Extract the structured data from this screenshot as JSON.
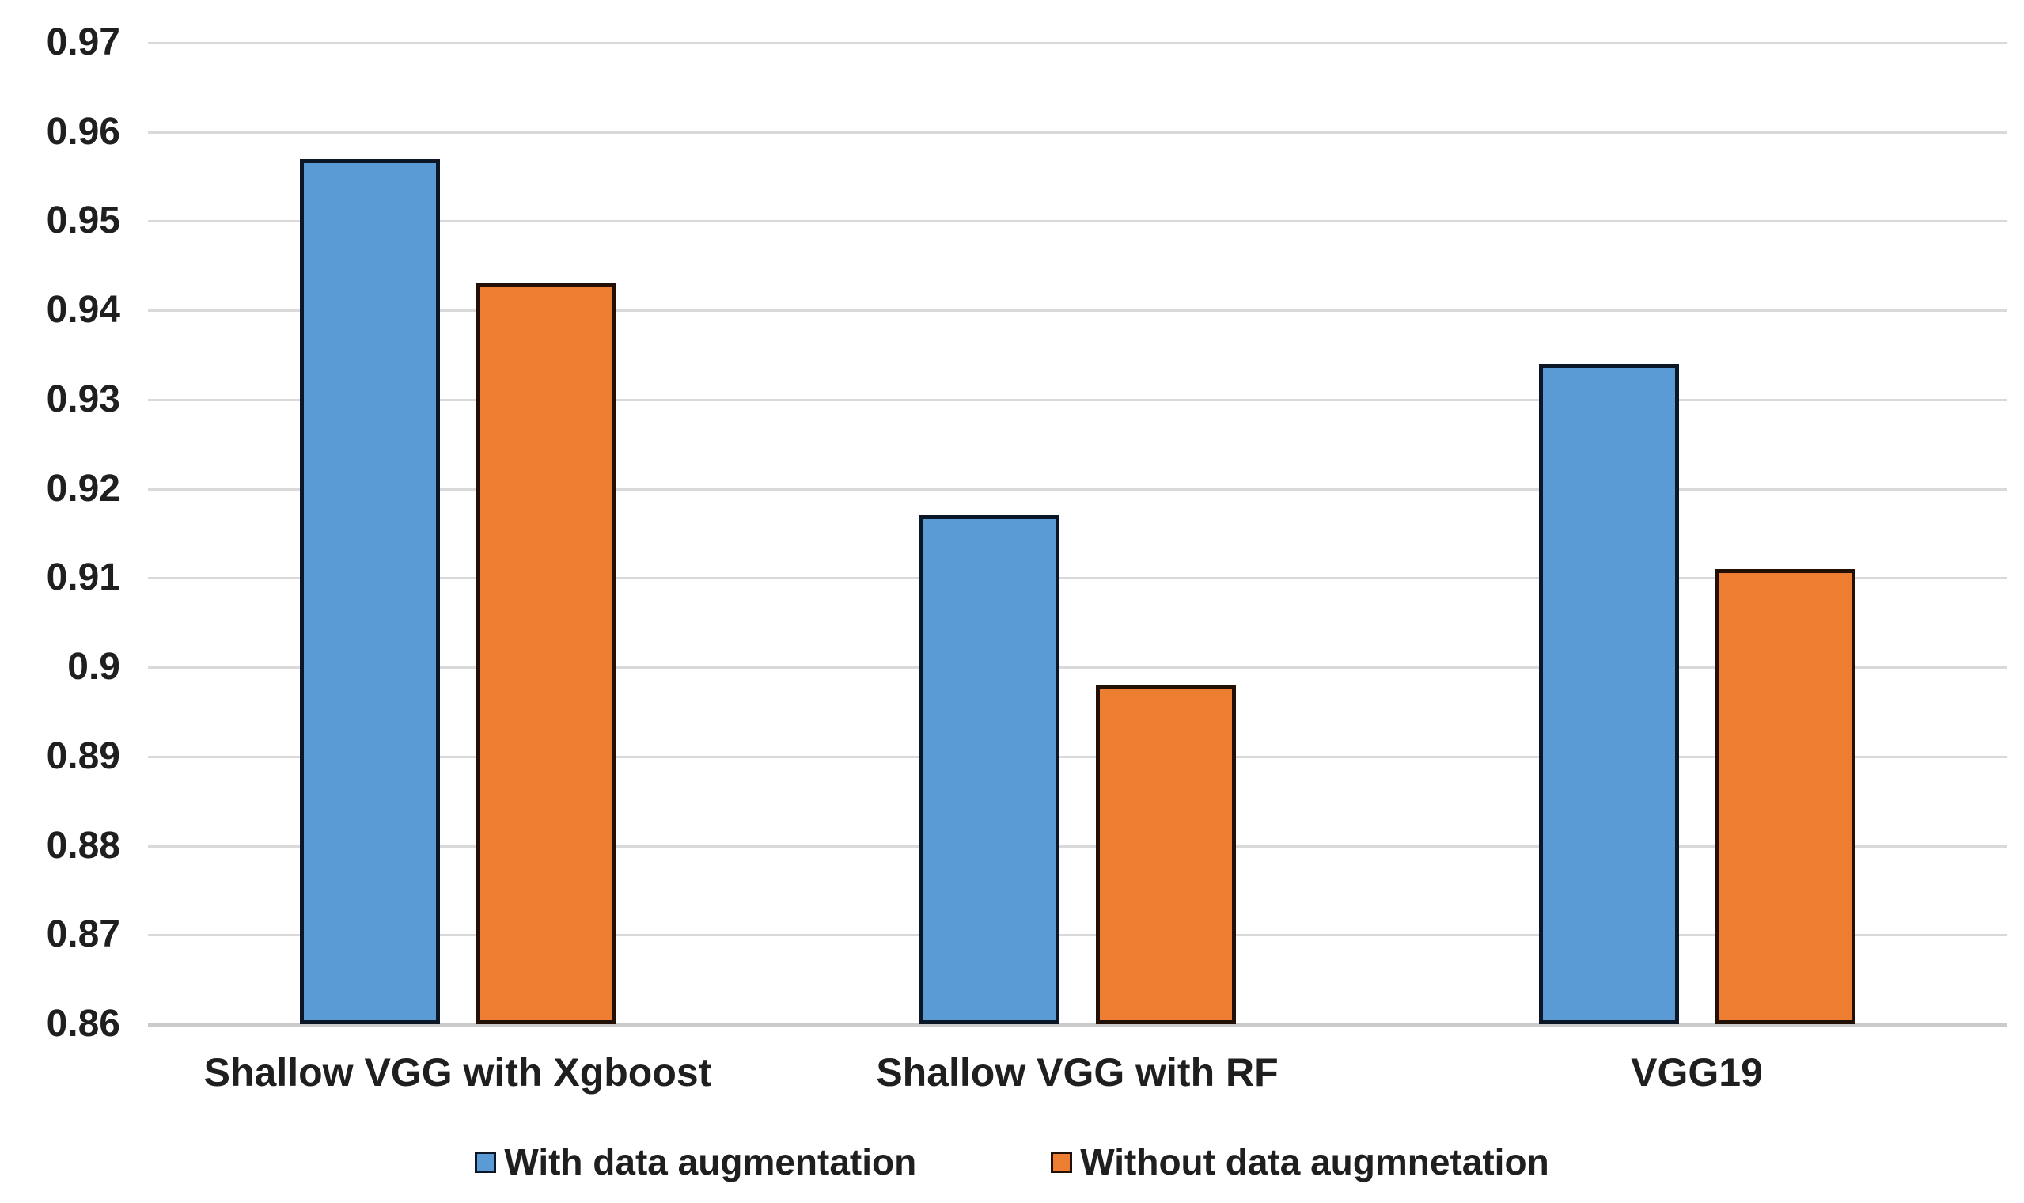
{
  "chart_data": {
    "type": "bar",
    "title": "",
    "xlabel": "",
    "ylabel": "",
    "categories": [
      "Shallow VGG with Xgboost",
      "Shallow VGG with RF",
      "VGG19"
    ],
    "series": [
      {
        "name": "With data augmentation",
        "color": "#5B9BD5",
        "border_color": "#0B1626",
        "values": [
          0.957,
          0.917,
          0.934
        ]
      },
      {
        "name": "Without data augmnetation",
        "color": "#ED7D31",
        "border_color": "#221004",
        "values": [
          0.943,
          0.898,
          0.911
        ]
      }
    ],
    "ylim": [
      0.86,
      0.97
    ],
    "ytick_step": 0.01,
    "yticks": [
      "0.97",
      "0.96",
      "0.95",
      "0.94",
      "0.93",
      "0.92",
      "0.91",
      "0.9",
      "0.89",
      "0.88",
      "0.87",
      "0.86"
    ],
    "grid": true,
    "gridline_color": "#D9D9D9",
    "legend_position": "bottom",
    "background_color": "#FFFFFF"
  }
}
